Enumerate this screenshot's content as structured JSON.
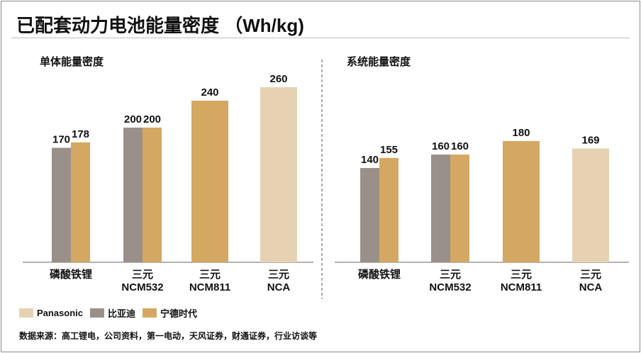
{
  "title": "已配套动力电池能量密度 （Wh/kg)",
  "source": "数据来源：高工锂电，公司资料，第一电动，天风证券，财通证券，行业访谈等",
  "colors": {
    "Panasonic": "#e6d1b3",
    "byd": "#9a908a",
    "catl": "#d4a862"
  },
  "legend": [
    {
      "name": "Panasonic",
      "color_key": "Panasonic"
    },
    {
      "name": "比亚迪",
      "color_key": "byd"
    },
    {
      "name": "宁德时代",
      "color_key": "catl"
    }
  ],
  "chart_data": [
    {
      "type": "bar",
      "title": "单体能量密度",
      "categories": [
        [
          "磷酸铁锂"
        ],
        [
          "三元",
          "NCM532"
        ],
        [
          "三元",
          "NCM811"
        ],
        [
          "三元",
          "NCA"
        ]
      ],
      "series": [
        {
          "name": "比亚迪",
          "color_key": "byd",
          "values": [
            170,
            200,
            null,
            null
          ]
        },
        {
          "name": "宁德时代",
          "color_key": "catl",
          "values": [
            178,
            200,
            240,
            null
          ]
        },
        {
          "name": "Panasonic",
          "color_key": "Panasonic",
          "values": [
            null,
            null,
            null,
            260
          ]
        }
      ],
      "ylim": [
        0,
        275
      ]
    },
    {
      "type": "bar",
      "title": "系统能量密度",
      "categories": [
        [
          "磷酸铁锂"
        ],
        [
          "三元",
          "NCM532"
        ],
        [
          "三元",
          "NCM811"
        ],
        [
          "三元",
          "NCA"
        ]
      ],
      "series": [
        {
          "name": "比亚迪",
          "color_key": "byd",
          "values": [
            140,
            160,
            null,
            null
          ]
        },
        {
          "name": "宁德时代",
          "color_key": "catl",
          "values": [
            155,
            160,
            180,
            null
          ]
        },
        {
          "name": "Panasonic",
          "color_key": "Panasonic",
          "values": [
            null,
            null,
            null,
            169
          ]
        }
      ],
      "ylim": [
        0,
        275
      ]
    }
  ]
}
